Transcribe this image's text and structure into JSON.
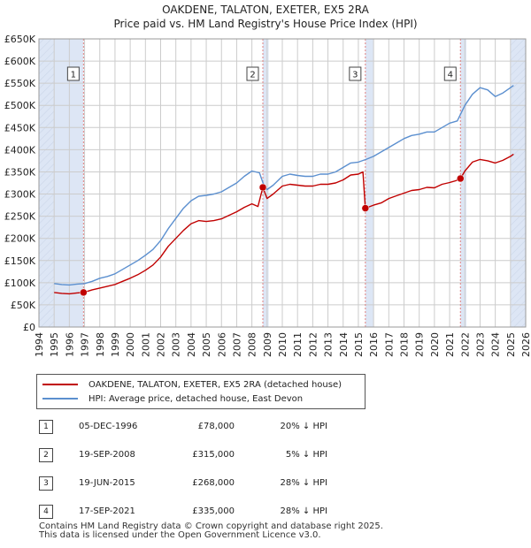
{
  "title": "OAKDENE, TALATON, EXETER, EX5 2RA",
  "subtitle": "Price paid vs. HM Land Registry's House Price Index (HPI)",
  "legend": {
    "property_label": "OAKDENE, TALATON, EXETER, EX5 2RA (detached house)",
    "hpi_label": "HPI: Average price, detached house, East Devon"
  },
  "transactions": [
    {
      "num": "1",
      "date": "05-DEC-1996",
      "price": "£78,000",
      "hpi_diff": "20% ↓ HPI"
    },
    {
      "num": "2",
      "date": "19-SEP-2008",
      "price": "£315,000",
      "hpi_diff": "5% ↓ HPI"
    },
    {
      "num": "3",
      "date": "19-JUN-2015",
      "price": "£268,000",
      "hpi_diff": "28% ↓ HPI"
    },
    {
      "num": "4",
      "date": "17-SEP-2021",
      "price": "£335,000",
      "hpi_diff": "28% ↓ HPI"
    }
  ],
  "footer": {
    "line1": "Contains HM Land Registry data © Crown copyright and database right 2025.",
    "line2": "This data is licensed under the Open Government Licence v3.0."
  },
  "colors": {
    "property": "#c00000",
    "hpi": "#5b8fcf",
    "shade": "#dde6f5",
    "grid": "#cccccc",
    "marker_line": "#e08080"
  },
  "chart_data": {
    "type": "line",
    "title": "OAKDENE, TALATON, EXETER, EX5 2RA",
    "subtitle": "Price paid vs. HM Land Registry's House Price Index (HPI)",
    "xlabel": "",
    "ylabel": "",
    "xlim": [
      1994,
      2026
    ],
    "ylim": [
      0,
      650000
    ],
    "x_ticks": [
      1994,
      1995,
      1996,
      1997,
      1998,
      1999,
      2000,
      2001,
      2002,
      2003,
      2004,
      2005,
      2006,
      2007,
      2008,
      2009,
      2010,
      2011,
      2012,
      2013,
      2014,
      2015,
      2016,
      2017,
      2018,
      2019,
      2020,
      2021,
      2022,
      2023,
      2024,
      2025,
      2026
    ],
    "y_ticks": [
      0,
      50000,
      100000,
      150000,
      200000,
      250000,
      300000,
      350000,
      400000,
      450000,
      500000,
      550000,
      600000,
      650000
    ],
    "y_tick_labels": [
      "£0",
      "£50K",
      "£100K",
      "£150K",
      "£200K",
      "£250K",
      "£300K",
      "£350K",
      "£400K",
      "£450K",
      "£500K",
      "£550K",
      "£600K",
      "£650K"
    ],
    "grid": true,
    "shaded_ranges": [
      [
        1994.0,
        1996.93
      ],
      [
        2008.72,
        2009.1
      ],
      [
        2015.46,
        2016.0
      ],
      [
        2021.71,
        2022.1
      ],
      [
        2025.0,
        2026.0
      ]
    ],
    "hatched_ranges": [
      [
        1994.0,
        1995.0
      ],
      [
        2025.0,
        2026.0
      ]
    ],
    "markers": [
      {
        "label": "1",
        "x": 1996.93,
        "y": 78000
      },
      {
        "label": "2",
        "x": 2008.72,
        "y": 315000
      },
      {
        "label": "3",
        "x": 2015.46,
        "y": 268000
      },
      {
        "label": "4",
        "x": 2021.71,
        "y": 335000
      }
    ],
    "series": [
      {
        "name": "OAKDENE, TALATON, EXETER, EX5 2RA (detached house)",
        "color": "#c00000",
        "points": [
          [
            1995.0,
            78000
          ],
          [
            1995.5,
            76000
          ],
          [
            1996.0,
            75000
          ],
          [
            1996.5,
            77000
          ],
          [
            1996.93,
            78000
          ],
          [
            1997.5,
            84000
          ],
          [
            1998.0,
            88000
          ],
          [
            1998.5,
            92000
          ],
          [
            1999.0,
            96000
          ],
          [
            1999.5,
            103000
          ],
          [
            2000.0,
            110000
          ],
          [
            2000.5,
            118000
          ],
          [
            2001.0,
            128000
          ],
          [
            2001.5,
            140000
          ],
          [
            2002.0,
            158000
          ],
          [
            2002.5,
            182000
          ],
          [
            2003.0,
            200000
          ],
          [
            2003.5,
            218000
          ],
          [
            2004.0,
            233000
          ],
          [
            2004.5,
            240000
          ],
          [
            2005.0,
            238000
          ],
          [
            2005.5,
            240000
          ],
          [
            2006.0,
            244000
          ],
          [
            2006.5,
            252000
          ],
          [
            2007.0,
            260000
          ],
          [
            2007.5,
            270000
          ],
          [
            2008.0,
            278000
          ],
          [
            2008.4,
            272000
          ],
          [
            2008.72,
            315000
          ],
          [
            2009.0,
            290000
          ],
          [
            2009.4,
            300000
          ],
          [
            2010.0,
            318000
          ],
          [
            2010.5,
            322000
          ],
          [
            2011.0,
            320000
          ],
          [
            2011.5,
            318000
          ],
          [
            2012.0,
            318000
          ],
          [
            2012.5,
            322000
          ],
          [
            2013.0,
            322000
          ],
          [
            2013.5,
            325000
          ],
          [
            2014.0,
            332000
          ],
          [
            2014.5,
            343000
          ],
          [
            2015.0,
            345000
          ],
          [
            2015.3,
            350000
          ],
          [
            2015.46,
            268000
          ],
          [
            2016.0,
            275000
          ],
          [
            2016.5,
            280000
          ],
          [
            2017.0,
            290000
          ],
          [
            2017.5,
            296000
          ],
          [
            2018.0,
            302000
          ],
          [
            2018.5,
            308000
          ],
          [
            2019.0,
            310000
          ],
          [
            2019.5,
            315000
          ],
          [
            2020.0,
            314000
          ],
          [
            2020.5,
            322000
          ],
          [
            2021.0,
            326000
          ],
          [
            2021.4,
            330000
          ],
          [
            2021.71,
            335000
          ],
          [
            2022.0,
            352000
          ],
          [
            2022.5,
            372000
          ],
          [
            2023.0,
            378000
          ],
          [
            2023.5,
            375000
          ],
          [
            2024.0,
            370000
          ],
          [
            2024.5,
            376000
          ],
          [
            2025.0,
            385000
          ],
          [
            2025.2,
            390000
          ]
        ]
      },
      {
        "name": "HPI: Average price, detached house, East Devon",
        "color": "#5b8fcf",
        "points": [
          [
            1995.0,
            98000
          ],
          [
            1995.5,
            96000
          ],
          [
            1996.0,
            95000
          ],
          [
            1996.5,
            97000
          ],
          [
            1997.0,
            98000
          ],
          [
            1997.5,
            103000
          ],
          [
            1998.0,
            110000
          ],
          [
            1998.5,
            114000
          ],
          [
            1999.0,
            120000
          ],
          [
            1999.5,
            130000
          ],
          [
            2000.0,
            140000
          ],
          [
            2000.5,
            150000
          ],
          [
            2001.0,
            162000
          ],
          [
            2001.5,
            175000
          ],
          [
            2002.0,
            195000
          ],
          [
            2002.5,
            222000
          ],
          [
            2003.0,
            245000
          ],
          [
            2003.5,
            268000
          ],
          [
            2004.0,
            285000
          ],
          [
            2004.5,
            295000
          ],
          [
            2005.0,
            297000
          ],
          [
            2005.5,
            300000
          ],
          [
            2006.0,
            305000
          ],
          [
            2006.5,
            315000
          ],
          [
            2007.0,
            325000
          ],
          [
            2007.5,
            340000
          ],
          [
            2008.0,
            352000
          ],
          [
            2008.5,
            348000
          ],
          [
            2008.8,
            318000
          ],
          [
            2009.0,
            310000
          ],
          [
            2009.4,
            320000
          ],
          [
            2010.0,
            340000
          ],
          [
            2010.5,
            345000
          ],
          [
            2011.0,
            342000
          ],
          [
            2011.5,
            340000
          ],
          [
            2012.0,
            340000
          ],
          [
            2012.5,
            345000
          ],
          [
            2013.0,
            345000
          ],
          [
            2013.5,
            350000
          ],
          [
            2014.0,
            360000
          ],
          [
            2014.5,
            370000
          ],
          [
            2015.0,
            372000
          ],
          [
            2015.5,
            378000
          ],
          [
            2016.0,
            385000
          ],
          [
            2016.5,
            395000
          ],
          [
            2017.0,
            405000
          ],
          [
            2017.5,
            415000
          ],
          [
            2018.0,
            425000
          ],
          [
            2018.5,
            432000
          ],
          [
            2019.0,
            435000
          ],
          [
            2019.5,
            440000
          ],
          [
            2020.0,
            440000
          ],
          [
            2020.5,
            450000
          ],
          [
            2021.0,
            460000
          ],
          [
            2021.5,
            465000
          ],
          [
            2022.0,
            500000
          ],
          [
            2022.5,
            525000
          ],
          [
            2023.0,
            540000
          ],
          [
            2023.5,
            535000
          ],
          [
            2024.0,
            520000
          ],
          [
            2024.5,
            528000
          ],
          [
            2025.0,
            540000
          ],
          [
            2025.2,
            545000
          ]
        ]
      }
    ]
  }
}
